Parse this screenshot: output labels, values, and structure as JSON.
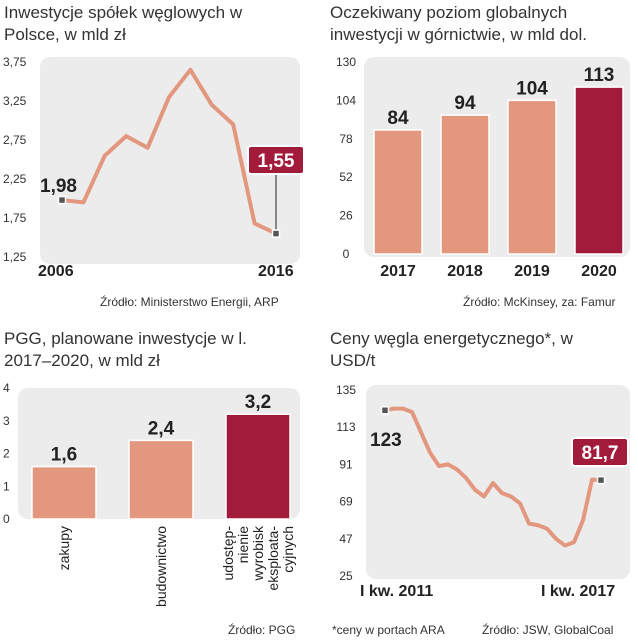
{
  "colors": {
    "salmon": "#e3977f",
    "crimson": "#a31b3b",
    "panel_bg": "#ececec",
    "dark": "#222222"
  },
  "chart_data": [
    {
      "type": "line",
      "title": "Inwestycje spółek węglowych w Polsce, w mld zł",
      "source": "Źródło: Ministerstwo Energii, ARP",
      "y_ticks": [
        "3,75",
        "3,25",
        "2,75",
        "2,25",
        "1,75",
        "1,25"
      ],
      "ylim": [
        1.25,
        3.75
      ],
      "x_labels": [
        "2006",
        "2016"
      ],
      "values": [
        1.98,
        1.95,
        2.55,
        2.8,
        2.65,
        3.3,
        3.65,
        3.2,
        2.95,
        1.68,
        1.55
      ],
      "start_label": "1,98",
      "end_label": "1,55"
    },
    {
      "type": "bar",
      "title": "Oczekiwany poziom globalnych inwestycji w górnictwie, w mld dol.",
      "source": "Źródło: McKinsey, za: Famur",
      "y_ticks": [
        "130",
        "104",
        "78",
        "52",
        "26",
        "0"
      ],
      "ylim": [
        0,
        130
      ],
      "categories": [
        "2017",
        "2018",
        "2019",
        "2020"
      ],
      "values": [
        84,
        94,
        104,
        113
      ],
      "value_labels": [
        "84",
        "94",
        "104",
        "113"
      ]
    },
    {
      "type": "bar",
      "title": "PGG, planowane inwestycje w l. 2017–2020, w mld zł",
      "source": "Źródło: PGG",
      "y_ticks": [
        "4",
        "3",
        "2",
        "1",
        "0"
      ],
      "ylim": [
        0,
        4
      ],
      "categories": [
        "zakupy",
        "budownictwo",
        "udostęp- nienie wyrobisk eksploata- cyjnych"
      ],
      "values": [
        1.6,
        2.4,
        3.2
      ],
      "value_labels": [
        "1,6",
        "2,4",
        "3,2"
      ]
    },
    {
      "type": "line",
      "title": "Ceny węgla energetycznego*, w USD/t",
      "source": "Źródło: JSW, GlobalCoal",
      "footnote": "*ceny w portach ARA",
      "y_ticks": [
        "135",
        "113",
        "91",
        "69",
        "47",
        "25"
      ],
      "ylim": [
        25,
        135
      ],
      "x_labels": [
        "I kw. 2011",
        "I kw. 2017"
      ],
      "values": [
        123,
        124,
        124,
        122,
        110,
        98,
        90,
        91,
        88,
        83,
        76,
        72,
        80,
        74,
        72,
        68,
        56,
        55,
        53,
        47,
        43,
        45,
        58,
        82,
        81.7
      ],
      "start_label": "123",
      "end_label": "81,7"
    }
  ]
}
